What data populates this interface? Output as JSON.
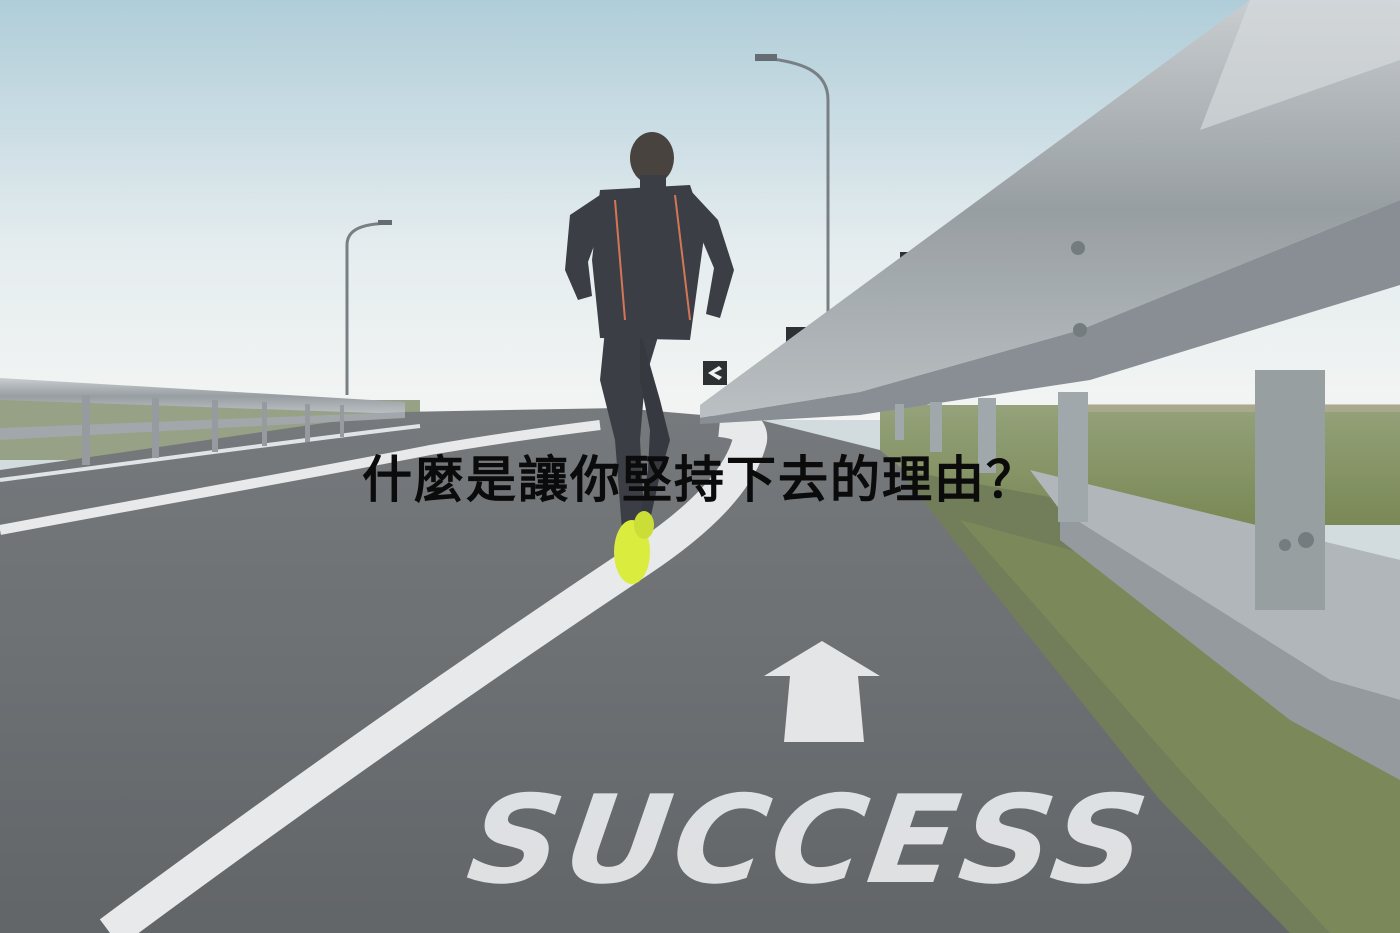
{
  "headline": "什麼是讓你堅持下去的理由？",
  "road_marking": {
    "word": "SUCCESS",
    "arrow_icon": "up-arrow-icon"
  },
  "colors": {
    "sky_top": "#a9c9d6",
    "sky_bottom": "#eef3f4",
    "asphalt": "#5e6265",
    "lane_line": "#e6e8ea",
    "guardrail": "#a3a9ad",
    "grass": "#7b8a58",
    "jacket": "#2b2f36",
    "shoe": "#d7ec2f",
    "headline_text": "#0b0b0b"
  }
}
